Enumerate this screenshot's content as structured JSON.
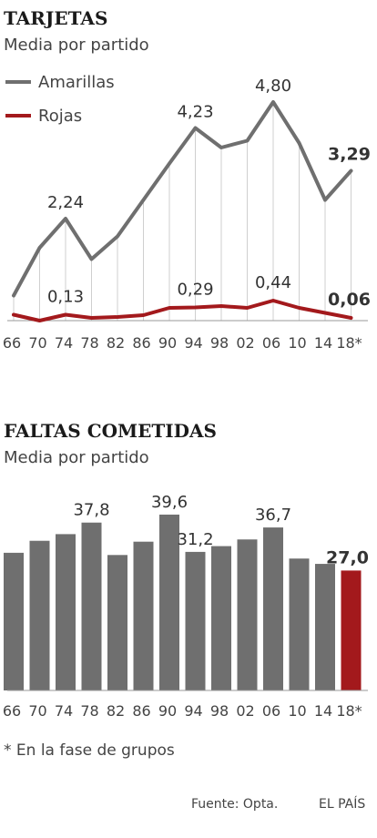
{
  "colors": {
    "amarillas": "#6f6f6f",
    "rojas": "#a3191c",
    "bar": "#6f6f6f",
    "bar_highlight": "#a3191c",
    "grid": "#cfcfcf"
  },
  "footnote": "* En la fase de grupos",
  "source": "Fuente: Opta.",
  "brand": "EL PAÍS",
  "chart_data": [
    {
      "type": "line",
      "title": "TARJETAS",
      "subtitle": "Media por partido",
      "categories": [
        "66",
        "70",
        "74",
        "78",
        "82",
        "86",
        "90",
        "94",
        "98",
        "02",
        "06",
        "10",
        "14",
        "18*"
      ],
      "series": [
        {
          "name": "Amarillas",
          "values": [
            0.55,
            1.6,
            2.24,
            1.35,
            1.85,
            2.65,
            3.45,
            4.23,
            3.8,
            3.95,
            4.8,
            3.9,
            2.65,
            3.29
          ]
        },
        {
          "name": "Rojas",
          "values": [
            0.13,
            0.0,
            0.13,
            0.06,
            0.08,
            0.12,
            0.28,
            0.29,
            0.32,
            0.28,
            0.44,
            0.28,
            0.17,
            0.06
          ]
        }
      ],
      "data_labels": [
        {
          "series": 0,
          "index": 2,
          "text": "2,24"
        },
        {
          "series": 0,
          "index": 7,
          "text": "4,23"
        },
        {
          "series": 0,
          "index": 10,
          "text": "4,80"
        },
        {
          "series": 0,
          "index": 13,
          "text": "3,29"
        },
        {
          "series": 1,
          "index": 2,
          "text": "0,13"
        },
        {
          "series": 1,
          "index": 7,
          "text": "0,29"
        },
        {
          "series": 1,
          "index": 10,
          "text": "0,44"
        },
        {
          "series": 1,
          "index": 13,
          "text": "0,06"
        }
      ],
      "ylim": [
        0,
        5.2
      ],
      "grid": "vertical"
    },
    {
      "type": "bar",
      "title": "FALTAS COMETIDAS",
      "subtitle": "Media por partido",
      "categories": [
        "66",
        "70",
        "74",
        "78",
        "82",
        "86",
        "90",
        "94",
        "98",
        "02",
        "06",
        "10",
        "14",
        "18*"
      ],
      "values": [
        31.0,
        33.7,
        35.2,
        37.8,
        30.5,
        33.5,
        39.6,
        31.2,
        32.5,
        34.0,
        36.7,
        29.7,
        28.5,
        27.0
      ],
      "highlight_index": 13,
      "data_labels": [
        {
          "index": 3,
          "text": "37,8"
        },
        {
          "index": 6,
          "text": "39,6"
        },
        {
          "index": 7,
          "text": "31,2"
        },
        {
          "index": 10,
          "text": "36,7"
        },
        {
          "index": 13,
          "text": "27,0"
        }
      ],
      "ylim": [
        0,
        40
      ]
    }
  ]
}
